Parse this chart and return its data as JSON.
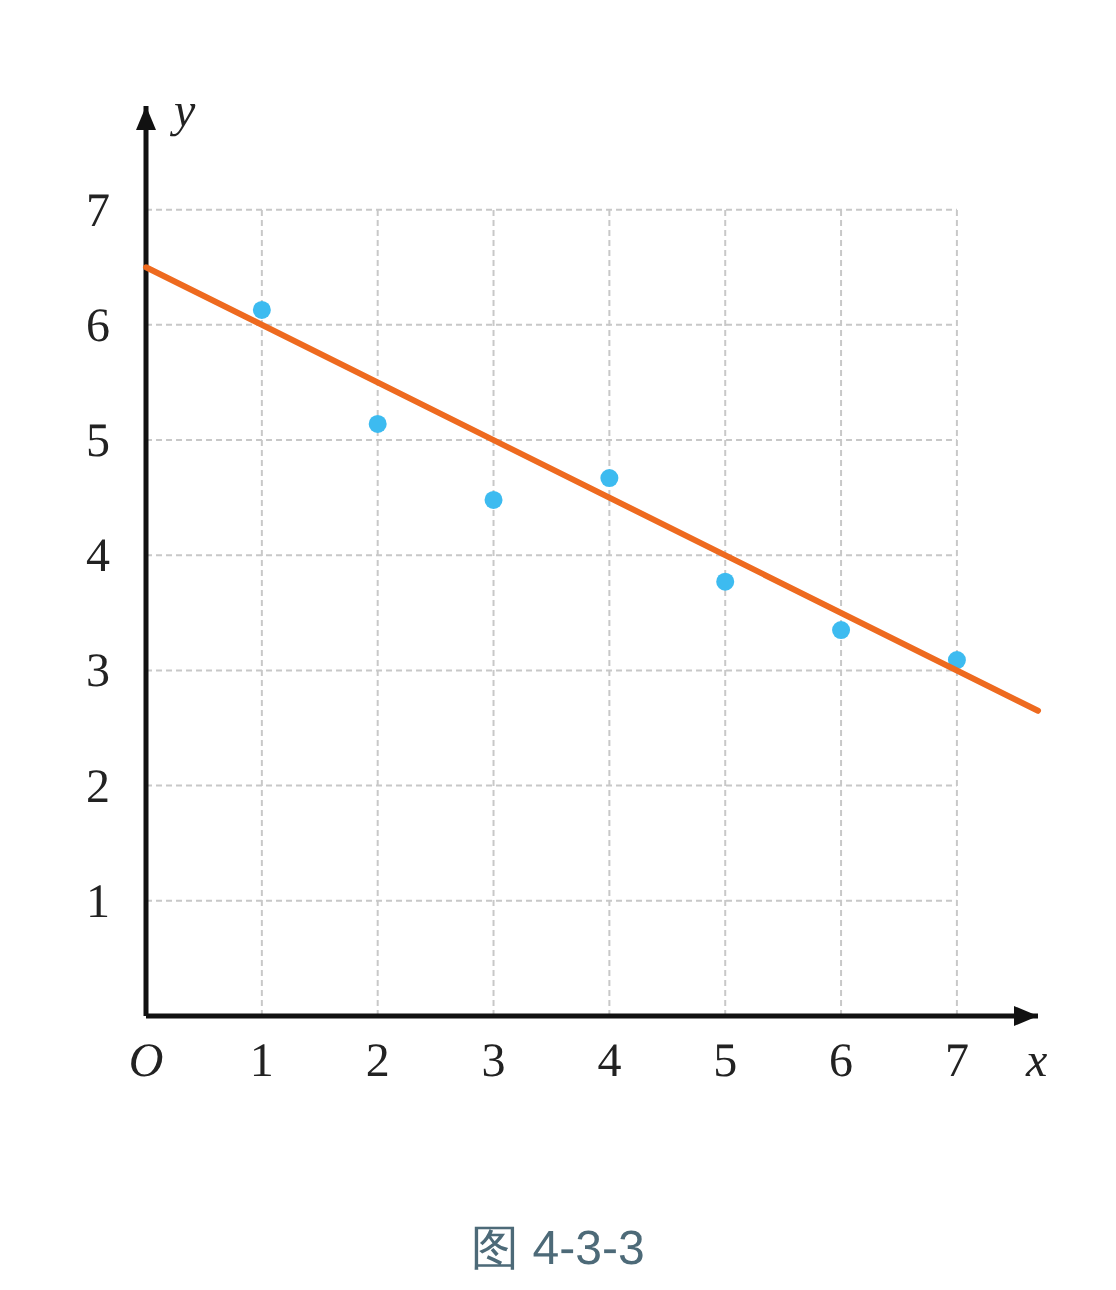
{
  "chart_data": {
    "type": "scatter",
    "xlabel": "x",
    "ylabel": "y",
    "xlim": [
      0,
      7.7
    ],
    "ylim": [
      0,
      7.9
    ],
    "xticks": [
      {
        "value": 0,
        "label": "O"
      },
      1,
      2,
      3,
      4,
      5,
      6,
      7
    ],
    "yticks": [
      1,
      2,
      3,
      4,
      5,
      6,
      7
    ],
    "grid": true,
    "marker": "circle",
    "series": [
      {
        "color": "#3dbbf0",
        "x": [
          1,
          2,
          3,
          4,
          5,
          6,
          7
        ],
        "values": [
          6.13,
          5.14,
          4.48,
          4.67,
          3.77,
          3.35,
          3.09
        ]
      },
      {
        "type": "line",
        "color": "#ee6a1f",
        "x": [
          0,
          7.7
        ],
        "values": [
          6.5,
          2.65
        ],
        "marker": "none"
      }
    ],
    "annotations": [
      "图 4-3-3"
    ]
  }
}
